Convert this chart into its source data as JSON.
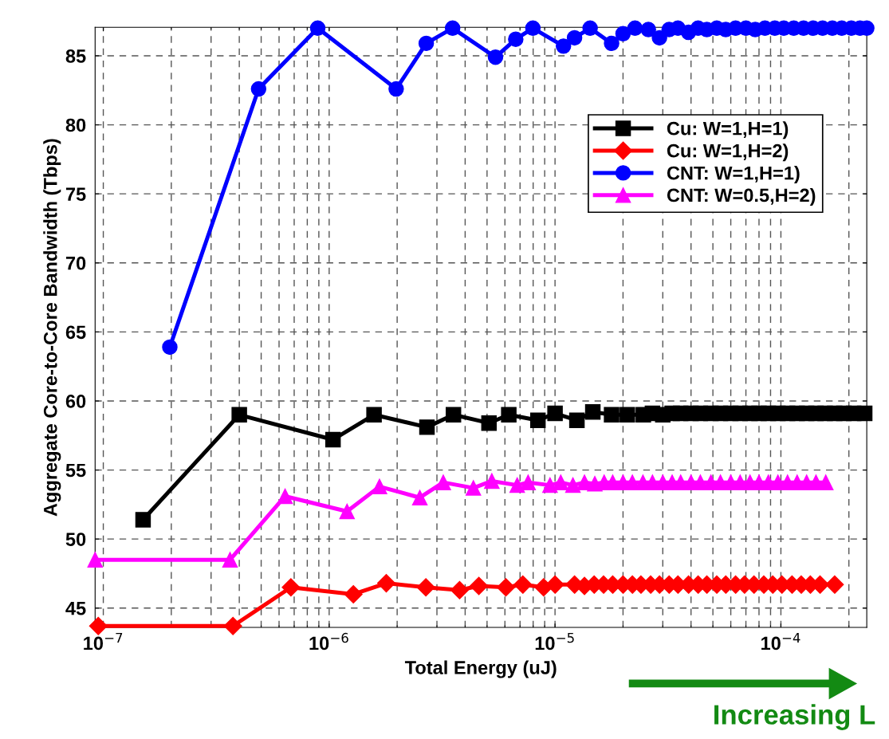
{
  "chart_data": {
    "type": "line",
    "xlabel": "Total Energy (uJ)",
    "ylabel": "Aggregate Core-to-Core Bandwidth (Tbps)",
    "log": "x",
    "grid": true,
    "legend": "top right",
    "line_style": "solid",
    "xlim": [
      9.2e-08,
      0.00024
    ],
    "ylim": [
      43.6,
      87.06
    ],
    "xticks": [
      {
        "value": 1e-07,
        "label": "10$^{−7}$"
      },
      {
        "value": 1e-06,
        "label": "10$^{−6}$"
      },
      {
        "value": 1e-05,
        "label": "10$^{−5}$"
      },
      {
        "value": 0.0001,
        "label": "10$^{−4}$"
      }
    ],
    "yticks": [
      45,
      50,
      55,
      60,
      65,
      70,
      75,
      80,
      85
    ],
    "annotations": [
      "Increasing L"
    ],
    "series": [
      {
        "name": "Cu: W=1,H=1)",
        "color": "#000000",
        "marker": "square",
        "x": [
          1.5e-07,
          4e-07,
          1.04e-06,
          1.58e-06,
          2.71e-06,
          3.55e-06,
          5.1e-06,
          6.24e-06,
          8.4e-06,
          1e-05,
          1.25e-05,
          1.47e-05,
          1.78e-05,
          2.09e-05,
          2.46e-05,
          2.7e-05,
          3e-05,
          3.3e-05,
          3.6e-05,
          4e-05,
          4.4e-05,
          4.9e-05,
          5.4e-05,
          6e-05,
          6.6e-05,
          7.3e-05,
          8e-05,
          8.8e-05,
          9.7e-05,
          0.000107,
          0.000118,
          0.00013,
          0.000143,
          0.000157,
          0.000173,
          0.00019,
          0.00021,
          0.000235
        ],
        "values": [
          51.4,
          59.0,
          57.2,
          59.0,
          58.1,
          59.0,
          58.4,
          59.0,
          58.6,
          59.1,
          58.6,
          59.2,
          59.0,
          59.0,
          59.0,
          59.1,
          59.0,
          59.1,
          59.1,
          59.1,
          59.1,
          59.1,
          59.1,
          59.1,
          59.1,
          59.1,
          59.1,
          59.1,
          59.1,
          59.1,
          59.1,
          59.1,
          59.1,
          59.1,
          59.1,
          59.1,
          59.1,
          59.1
        ]
      },
      {
        "name": "Cu: W=1,H=2)",
        "color": "#ff0000",
        "marker": "diamond",
        "x": [
          9.5e-08,
          3.75e-07,
          6.77e-07,
          1.28e-06,
          1.79e-06,
          2.68e-06,
          3.78e-06,
          4.6e-06,
          6.06e-06,
          7.2e-06,
          8.9e-06,
          1e-05,
          1.22e-05,
          1.35e-05,
          1.49e-05,
          1.64e-05,
          1.8e-05,
          2e-05,
          2.2e-05,
          2.4e-05,
          2.65e-05,
          2.9e-05,
          3.2e-05,
          3.5e-05,
          3.9e-05,
          4.3e-05,
          4.7e-05,
          5.2e-05,
          5.7e-05,
          6.3e-05,
          6.9e-05,
          7.6e-05,
          8.4e-05,
          9.2e-05,
          0.000101,
          0.000112,
          0.000123,
          0.000135,
          0.000149,
          0.000173
        ],
        "values": [
          43.7,
          43.7,
          46.5,
          46.0,
          46.8,
          46.5,
          46.3,
          46.6,
          46.5,
          46.7,
          46.5,
          46.7,
          46.7,
          46.6,
          46.7,
          46.7,
          46.7,
          46.7,
          46.7,
          46.7,
          46.7,
          46.7,
          46.7,
          46.7,
          46.7,
          46.7,
          46.7,
          46.7,
          46.7,
          46.7,
          46.7,
          46.7,
          46.7,
          46.7,
          46.7,
          46.7,
          46.7,
          46.7,
          46.7,
          46.7
        ]
      },
      {
        "name": "CNT: W=1,H=1)",
        "color": "#0000ff",
        "marker": "circle",
        "x": [
          1.97e-07,
          4.87e-07,
          8.9e-07,
          1.98e-06,
          2.69e-06,
          3.52e-06,
          5.45e-06,
          6.7e-06,
          7.98e-06,
          1.09e-05,
          1.22e-05,
          1.43e-05,
          1.78e-05,
          2e-05,
          2.26e-05,
          2.59e-05,
          2.9e-05,
          3.2e-05,
          3.5e-05,
          3.9e-05,
          4.3e-05,
          4.7e-05,
          5.2e-05,
          5.7e-05,
          6.3e-05,
          7e-05,
          7.7e-05,
          8.5e-05,
          9.4e-05,
          0.000103,
          0.000114,
          0.000126,
          0.000139,
          0.000153,
          0.000169,
          0.000186,
          0.000205,
          0.000224,
          0.00024
        ],
        "values": [
          63.9,
          82.6,
          87.0,
          82.6,
          85.9,
          87.0,
          84.9,
          86.2,
          87.0,
          85.7,
          86.3,
          87.0,
          85.9,
          86.6,
          87.0,
          86.9,
          86.3,
          86.9,
          87.0,
          86.7,
          87.0,
          86.9,
          87.0,
          86.9,
          87.0,
          87.0,
          86.9,
          87.0,
          87.0,
          87.0,
          87.0,
          87.0,
          87.0,
          87.0,
          87.0,
          87.0,
          87.0,
          87.0,
          87.0
        ]
      },
      {
        "name": "CNT: W=0.5,H=2)",
        "color": "#ff00ff",
        "marker": "triangle",
        "x": [
          9.2e-08,
          3.64e-07,
          6.38e-07,
          1.2e-06,
          1.67e-06,
          2.52e-06,
          3.2e-06,
          4.35e-06,
          5.25e-06,
          6.8e-06,
          7.6e-06,
          9.5e-06,
          1.06e-05,
          1.2e-05,
          1.35e-05,
          1.5e-05,
          1.65e-05,
          1.8e-05,
          2e-05,
          2.2e-05,
          2.45e-05,
          2.7e-05,
          3e-05,
          3.3e-05,
          3.6e-05,
          4e-05,
          4.4e-05,
          4.9e-05,
          5.4e-05,
          6e-05,
          6.6e-05,
          7.3e-05,
          8e-05,
          8.8e-05,
          9.7e-05,
          0.000107,
          0.000118,
          0.00013,
          0.000143,
          0.000158
        ],
        "values": [
          48.5,
          48.5,
          53.1,
          52.0,
          53.8,
          53.0,
          54.1,
          53.7,
          54.2,
          53.9,
          54.1,
          53.9,
          54.1,
          53.9,
          54.1,
          54.0,
          54.1,
          54.1,
          54.1,
          54.1,
          54.1,
          54.1,
          54.1,
          54.1,
          54.1,
          54.1,
          54.1,
          54.1,
          54.1,
          54.1,
          54.1,
          54.1,
          54.1,
          54.1,
          54.1,
          54.1,
          54.1,
          54.1,
          54.1,
          54.1
        ]
      }
    ]
  }
}
